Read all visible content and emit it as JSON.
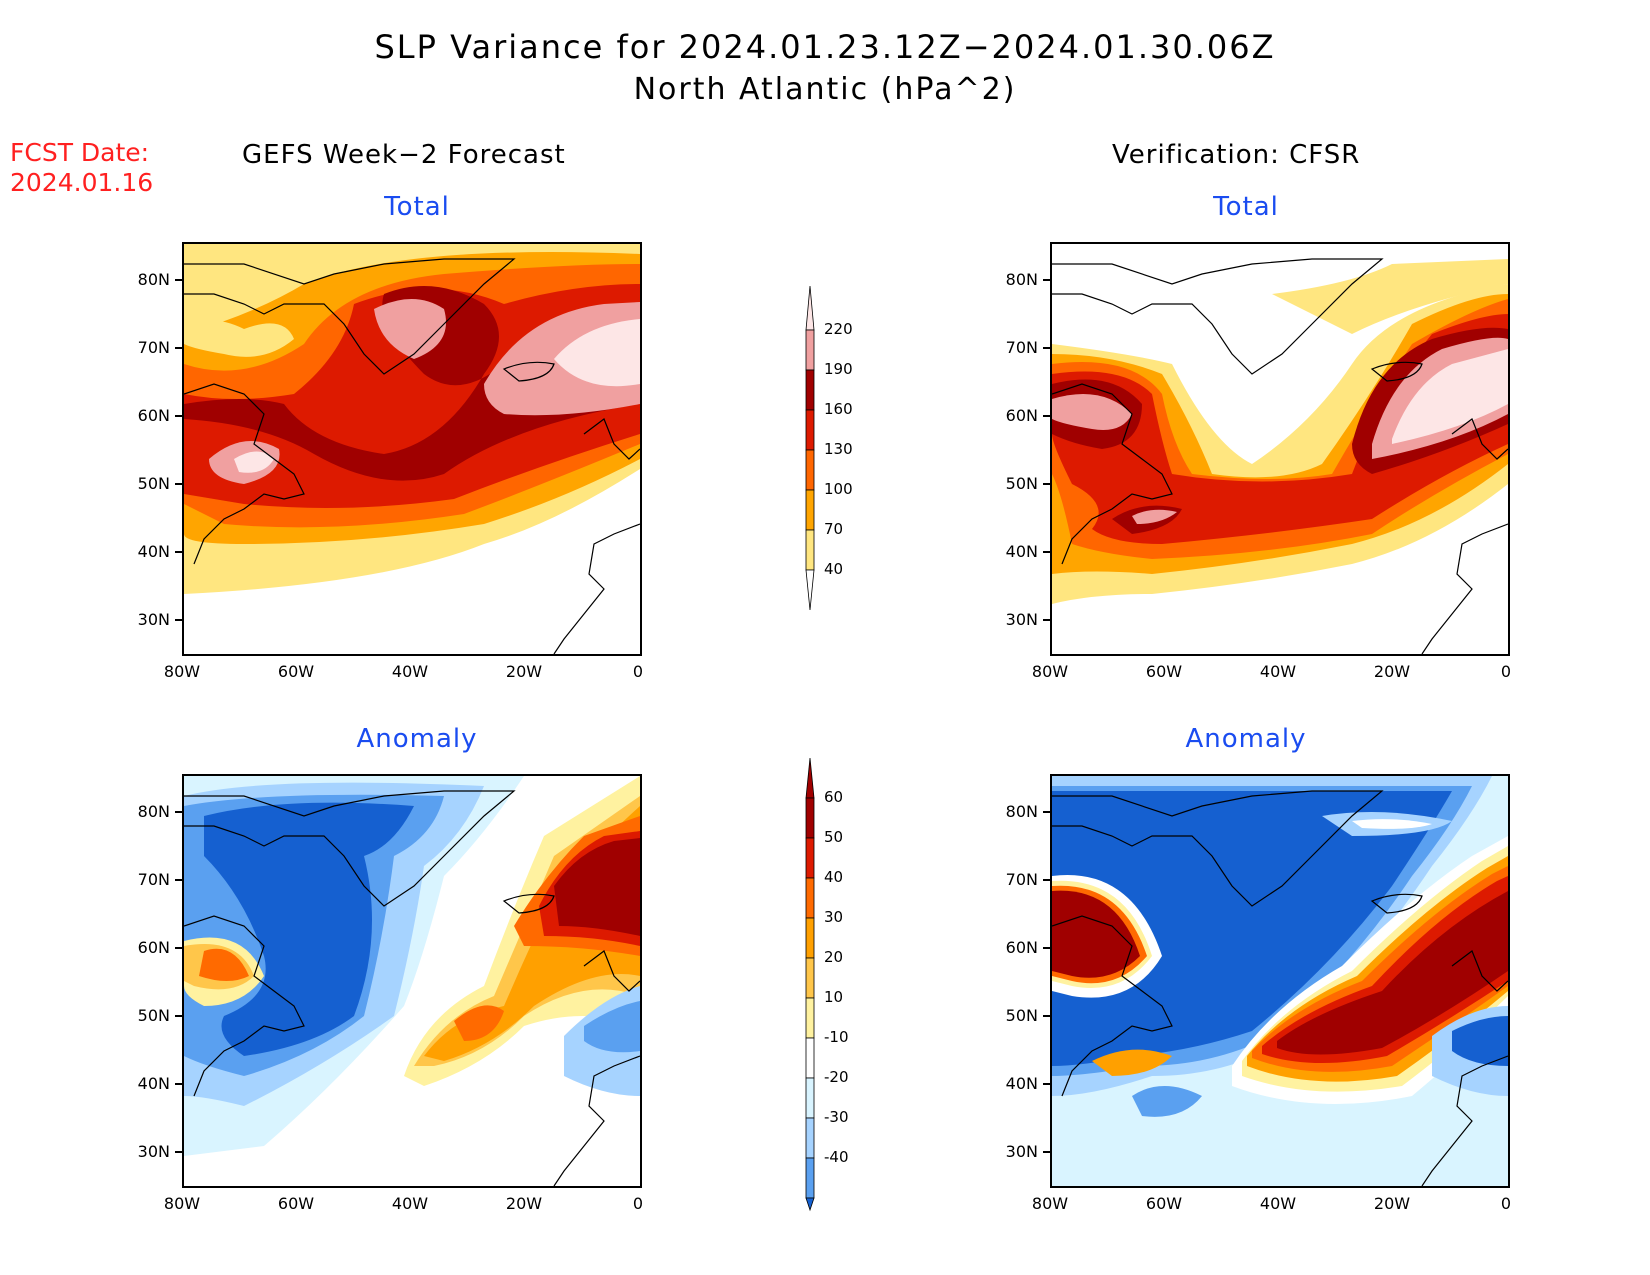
{
  "title": {
    "line1": "SLP Variance for 2024.01.23.12Z−2024.01.30.06Z",
    "line2": "North Atlantic (hPa^2)"
  },
  "fcst": {
    "line1": "FCST Date:",
    "line2": "2024.01.16"
  },
  "columns": {
    "left": "GEFS Week−2 Forecast",
    "right": "Verification: CFSR"
  },
  "panel_titles": {
    "total": "Total",
    "anomaly": "Anomaly"
  },
  "axes": {
    "lat_labels": [
      "80N",
      "70N",
      "60N",
      "50N",
      "40N",
      "30N"
    ],
    "lon_labels": [
      "80W",
      "60W",
      "40W",
      "20W",
      "0"
    ],
    "lat_range": [
      25,
      85
    ],
    "lon_range": [
      -80,
      0
    ]
  },
  "colorbars": {
    "total": {
      "labels": [
        "220",
        "190",
        "160",
        "130",
        "100",
        "70",
        "40"
      ],
      "colors": [
        "#fde6e6",
        "#f0a0a0",
        "#a00000",
        "#dd1a00",
        "#ff6600",
        "#ffa500",
        "#ffe680"
      ]
    },
    "anomaly": {
      "labels": [
        "60",
        "50",
        "40",
        "30",
        "20",
        "10",
        "-10",
        "-20",
        "-30",
        "-40"
      ],
      "colors": [
        "#a00000",
        "#dd1a00",
        "#ff6a00",
        "#ffa000",
        "#ffc64a",
        "#fff2a0",
        "#ffffff",
        "#d9f4ff",
        "#a6d3ff",
        "#5aa0f0",
        "#2878e0",
        "#1560d0"
      ]
    }
  }
}
